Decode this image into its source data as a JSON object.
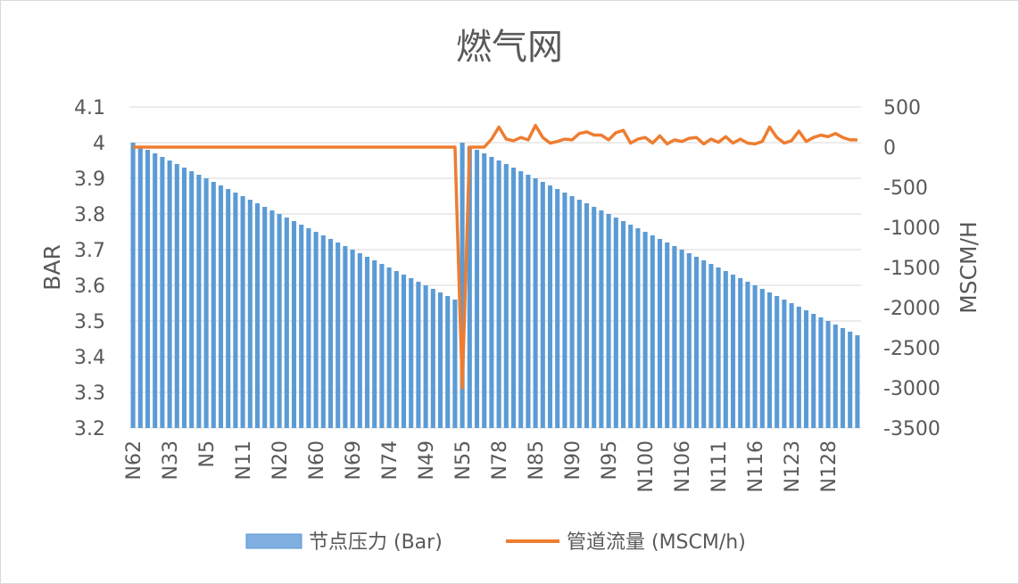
{
  "chart_data": {
    "type": "bar",
    "title": "燃气网",
    "left_axis": {
      "label": "BAR",
      "min": 3.2,
      "max": 4.1,
      "ticks": [
        4.1,
        4,
        3.9,
        3.8,
        3.7,
        3.6,
        3.5,
        3.4,
        3.3,
        3.2
      ],
      "tick_labels": [
        "4.1",
        "4",
        "3.9",
        "3.8",
        "3.7",
        "3.6",
        "3.5",
        "3.4",
        "3.3",
        "3.2"
      ]
    },
    "right_axis": {
      "label": "MSCM/H",
      "min": -3500,
      "max": 500,
      "ticks": [
        500,
        0,
        -500,
        -1000,
        -1500,
        -2000,
        -2500,
        -3000,
        -3500
      ],
      "tick_labels": [
        "500",
        "0",
        "-500",
        "-1000",
        "-1500",
        "-2000",
        "-2500",
        "-3000",
        "-3500"
      ]
    },
    "x_tick_labels": [
      "N62",
      "N33",
      "N5",
      "N11",
      "N20",
      "N60",
      "N69",
      "N74",
      "N49",
      "N55",
      "N78",
      "N85",
      "N90",
      "N95",
      "N100",
      "N106",
      "N111",
      "N116",
      "N123",
      "N128"
    ],
    "gridlines": true,
    "legend_position": "bottom",
    "series": [
      {
        "name": "节点压力 (Bar)",
        "type": "bar",
        "axis": "left",
        "color": "#5b9bd5",
        "values": [
          4.0,
          3.99,
          3.98,
          3.97,
          3.96,
          3.95,
          3.94,
          3.93,
          3.92,
          3.91,
          3.9,
          3.89,
          3.88,
          3.87,
          3.86,
          3.85,
          3.84,
          3.83,
          3.82,
          3.81,
          3.8,
          3.79,
          3.78,
          3.77,
          3.76,
          3.75,
          3.74,
          3.73,
          3.72,
          3.71,
          3.7,
          3.69,
          3.68,
          3.67,
          3.66,
          3.65,
          3.64,
          3.63,
          3.62,
          3.61,
          3.6,
          3.59,
          3.58,
          3.57,
          3.56,
          4.0,
          3.99,
          3.98,
          3.97,
          3.96,
          3.95,
          3.94,
          3.93,
          3.92,
          3.91,
          3.9,
          3.89,
          3.88,
          3.87,
          3.86,
          3.85,
          3.84,
          3.83,
          3.82,
          3.81,
          3.8,
          3.79,
          3.78,
          3.77,
          3.76,
          3.75,
          3.74,
          3.73,
          3.72,
          3.71,
          3.7,
          3.69,
          3.68,
          3.67,
          3.66,
          3.65,
          3.64,
          3.63,
          3.62,
          3.61,
          3.6,
          3.59,
          3.58,
          3.57,
          3.56,
          3.55,
          3.54,
          3.53,
          3.52,
          3.51,
          3.5,
          3.49,
          3.48,
          3.47,
          3.46
        ]
      },
      {
        "name": "管道流量 (MSCM/h)",
        "type": "line",
        "axis": "right",
        "color": "#ed7d31",
        "values": [
          0,
          0,
          0,
          0,
          0,
          0,
          0,
          0,
          0,
          0,
          0,
          0,
          0,
          0,
          0,
          0,
          0,
          0,
          0,
          0,
          0,
          0,
          0,
          0,
          0,
          0,
          0,
          0,
          0,
          0,
          0,
          0,
          0,
          0,
          0,
          0,
          0,
          0,
          0,
          0,
          0,
          0,
          0,
          0,
          0,
          -3000,
          0,
          0,
          0,
          100,
          250,
          100,
          80,
          120,
          90,
          270,
          120,
          50,
          70,
          100,
          90,
          170,
          190,
          150,
          150,
          90,
          180,
          210,
          50,
          100,
          120,
          50,
          140,
          40,
          90,
          70,
          110,
          120,
          40,
          100,
          60,
          130,
          50,
          100,
          50,
          40,
          70,
          250,
          120,
          50,
          80,
          200,
          70,
          120,
          150,
          130,
          170,
          120,
          90,
          90
        ]
      }
    ]
  }
}
